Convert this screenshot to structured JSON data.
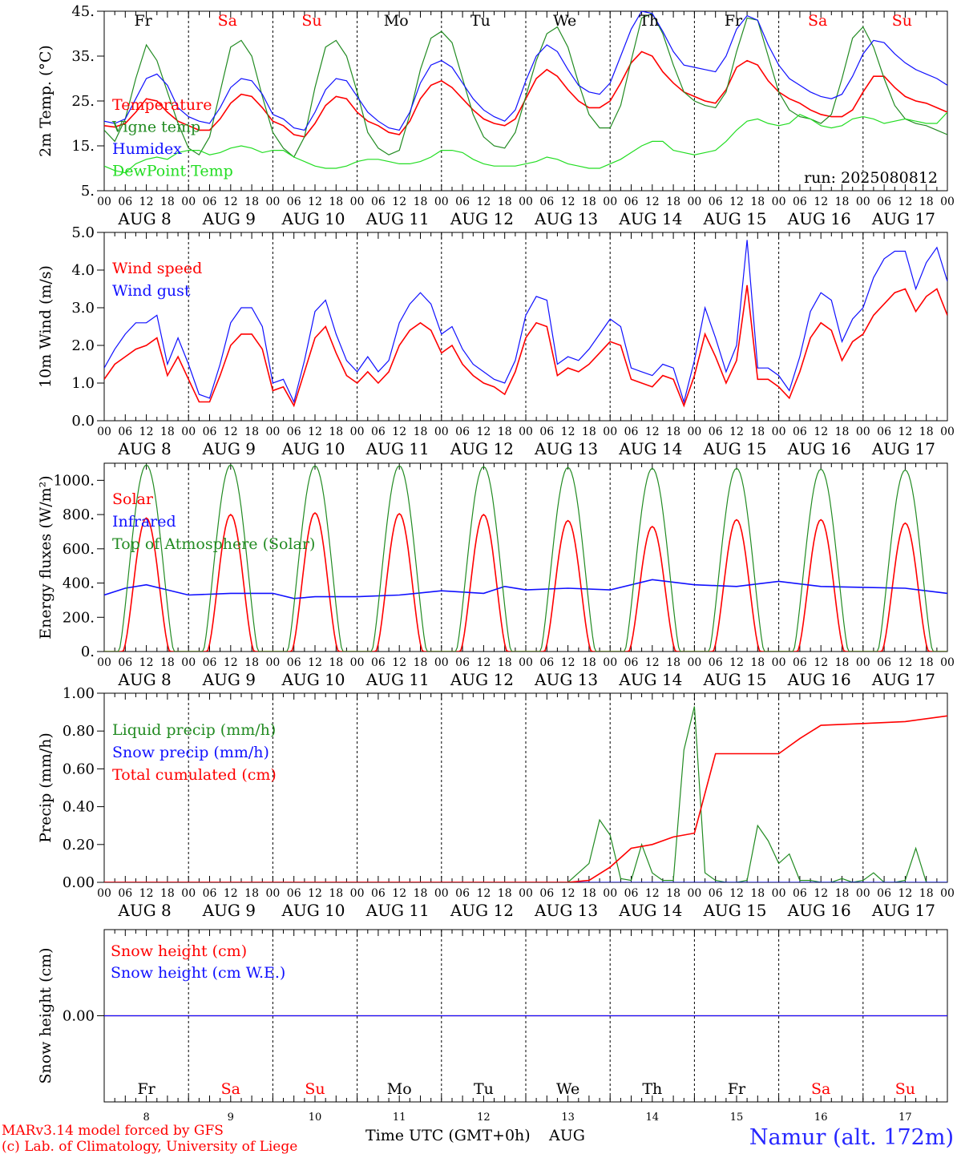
{
  "colors": {
    "red": "#ff0000",
    "green": "#228b22",
    "blue": "#1010ff",
    "lime": "#22dd22",
    "black": "#000000"
  },
  "days": [
    {
      "abbr": "Fr",
      "date": "AUG  8",
      "num": "8",
      "weekend": false
    },
    {
      "abbr": "Sa",
      "date": "AUG  9",
      "num": "9",
      "weekend": true
    },
    {
      "abbr": "Su",
      "date": "AUG 10",
      "num": "10",
      "weekend": true
    },
    {
      "abbr": "Mo",
      "date": "AUG 11",
      "num": "11",
      "weekend": false
    },
    {
      "abbr": "Tu",
      "date": "AUG 12",
      "num": "12",
      "weekend": false
    },
    {
      "abbr": "We",
      "date": "AUG 13",
      "num": "13",
      "weekend": false
    },
    {
      "abbr": "Th",
      "date": "AUG 14",
      "num": "14",
      "weekend": false
    },
    {
      "abbr": "Fr",
      "date": "AUG 15",
      "num": "15",
      "weekend": false
    },
    {
      "abbr": "Sa",
      "date": "AUG 16",
      "num": "16",
      "weekend": true
    },
    {
      "abbr": "Su",
      "date": "AUG 17",
      "num": "17",
      "weekend": true
    }
  ],
  "hour_labels": [
    "00",
    "06",
    "12",
    "18"
  ],
  "footer": {
    "model": "MARv3.14 model forced by GFS",
    "copyright": "(c) Lab. of Climatology, University of Liege",
    "xlabel": "Time UTC (GMT+0h)",
    "month": "AUG",
    "station": "Namur (alt. 172m)"
  },
  "chart_data": [
    {
      "type": "line",
      "ylabel": "2m Temp. (°C)",
      "ylim": [
        5,
        45
      ],
      "yticks": [
        5,
        15,
        25,
        35,
        45
      ],
      "ytick_labels": [
        "5.",
        "15.",
        "25.",
        "35.",
        "45."
      ],
      "annotation": "run: 2025080812",
      "x_unit": "hours since AUG 8 00 UTC",
      "x": [
        0,
        3,
        6,
        9,
        12,
        15,
        18,
        21,
        24,
        27,
        30,
        33,
        36,
        39,
        42,
        45,
        48,
        51,
        54,
        57,
        60,
        63,
        66,
        69,
        72,
        75,
        78,
        81,
        84,
        87,
        90,
        93,
        96,
        99,
        102,
        105,
        108,
        111,
        114,
        117,
        120,
        123,
        126,
        129,
        132,
        135,
        138,
        141,
        144,
        147,
        150,
        153,
        156,
        159,
        162,
        165,
        168,
        171,
        174,
        177,
        180,
        183,
        186,
        189,
        192,
        195,
        198,
        201,
        204,
        207,
        210,
        213,
        216,
        219,
        222,
        225,
        228,
        231,
        234,
        237,
        240
      ],
      "series": [
        {
          "name": "Temperature",
          "color": "#ff0000",
          "values": [
            19.5,
            19.2,
            20,
            22.5,
            25.5,
            25,
            22.5,
            20.5,
            19.5,
            18.5,
            18.5,
            21,
            24.5,
            26.5,
            26,
            23.5,
            20.5,
            19.5,
            17.5,
            17,
            20,
            24,
            26,
            25.5,
            22.5,
            20.5,
            19.5,
            18,
            17.5,
            20.5,
            25.5,
            28.5,
            29.5,
            28,
            25.5,
            23,
            21,
            20,
            19.5,
            21,
            25.5,
            30,
            32,
            30.5,
            27.5,
            25,
            23.5,
            23.5,
            25,
            29,
            33.5,
            36,
            35,
            31.5,
            29,
            27,
            26,
            25,
            24.5,
            27.5,
            32.5,
            34,
            33,
            29.5,
            27,
            25.5,
            24.5,
            23,
            22,
            21.5,
            21.5,
            23,
            27,
            30.5,
            30.5,
            28,
            26,
            25,
            24.5,
            23.5,
            22.5
          ]
        },
        {
          "name": "Vigne temp",
          "color": "#228b22",
          "values": [
            18.5,
            16,
            21,
            30,
            37.5,
            34,
            27,
            20,
            14.5,
            13,
            17,
            27,
            37,
            38.5,
            35,
            26,
            18,
            14.5,
            12.5,
            17,
            28,
            37,
            38.5,
            35,
            27,
            18,
            14.5,
            13,
            14,
            22,
            32,
            39,
            40.5,
            38,
            30,
            22,
            17,
            15,
            14.5,
            18,
            26,
            34,
            40,
            41.5,
            37,
            29,
            22,
            19,
            19,
            24,
            34,
            43.5,
            44.5,
            40,
            33,
            27,
            25,
            24,
            23.5,
            27,
            36,
            43.5,
            43,
            35,
            27,
            23,
            21.5,
            21,
            20,
            22,
            30,
            39,
            41.5,
            37,
            30,
            24,
            21,
            20,
            19.5,
            18.5,
            17.5
          ]
        },
        {
          "name": "Humidex",
          "color": "#1010ff",
          "values": [
            20.5,
            20,
            21,
            25.5,
            30,
            31,
            28.5,
            23.5,
            21.5,
            20.5,
            20,
            23.5,
            28,
            30,
            29.5,
            26.5,
            22,
            21,
            19,
            18.5,
            22.5,
            27.5,
            30,
            29.5,
            26,
            22.5,
            20.5,
            19,
            18.5,
            22.5,
            29,
            33,
            34,
            32.5,
            29,
            25.5,
            23,
            21.5,
            20.5,
            23,
            29.5,
            35,
            37.5,
            36,
            32,
            28.5,
            27,
            26.5,
            29,
            35,
            41,
            45,
            44.5,
            40.5,
            36,
            33,
            32.5,
            32,
            31.5,
            35,
            41,
            44,
            43,
            37.5,
            33,
            30,
            28.5,
            27,
            26,
            25.5,
            26.5,
            30.5,
            35.5,
            38.5,
            38,
            35.5,
            33.5,
            32,
            31,
            30,
            28.5
          ]
        },
        {
          "name": "DewPoint Temp",
          "color": "#22dd22",
          "values": [
            10.5,
            9.5,
            9,
            11,
            12,
            12.5,
            12,
            13.5,
            14,
            14,
            13,
            13.5,
            14.5,
            15,
            14.5,
            13.5,
            14,
            14,
            12.5,
            11.5,
            10.5,
            10,
            10,
            10.5,
            11.5,
            12,
            12,
            11.5,
            11,
            11,
            11.5,
            12.5,
            14,
            14,
            13.5,
            12,
            11,
            10.5,
            10.5,
            10.5,
            11,
            11.5,
            12.5,
            12,
            11,
            10.5,
            10,
            10,
            11,
            12,
            13.5,
            15,
            16,
            16,
            14,
            13.5,
            13,
            13.5,
            14,
            16,
            18.5,
            20.5,
            21,
            20,
            19.5,
            20,
            22,
            21,
            19.5,
            19,
            19.5,
            21,
            21.5,
            21,
            20,
            20.5,
            21,
            20.5,
            20,
            20,
            22.5
          ]
        }
      ]
    },
    {
      "type": "line",
      "ylabel": "10m Wind (m/s)",
      "ylim": [
        0,
        5
      ],
      "yticks": [
        0,
        1,
        2,
        3,
        4,
        5
      ],
      "ytick_labels": [
        "0.0",
        "1.0",
        "2.0",
        "3.0",
        "4.0",
        "5.0"
      ],
      "x_unit": "hours since AUG 8 00 UTC",
      "x": [
        0,
        3,
        6,
        9,
        12,
        15,
        18,
        21,
        24,
        27,
        30,
        33,
        36,
        39,
        42,
        45,
        48,
        51,
        54,
        57,
        60,
        63,
        66,
        69,
        72,
        75,
        78,
        81,
        84,
        87,
        90,
        93,
        96,
        99,
        102,
        105,
        108,
        111,
        114,
        117,
        120,
        123,
        126,
        129,
        132,
        135,
        138,
        141,
        144,
        147,
        150,
        153,
        156,
        159,
        162,
        165,
        168,
        171,
        174,
        177,
        180,
        183,
        186,
        189,
        192,
        195,
        198,
        201,
        204,
        207,
        210,
        213,
        216,
        219,
        222,
        225,
        228,
        231,
        234,
        237,
        240
      ],
      "series": [
        {
          "name": "Wind speed",
          "color": "#ff0000",
          "values": [
            1.1,
            1.5,
            1.7,
            1.9,
            2.0,
            2.2,
            1.2,
            1.7,
            1.1,
            0.5,
            0.5,
            1.2,
            2.0,
            2.3,
            2.3,
            1.9,
            0.8,
            0.9,
            0.4,
            1.3,
            2.2,
            2.5,
            1.8,
            1.2,
            1.0,
            1.3,
            1.0,
            1.3,
            2.0,
            2.4,
            2.6,
            2.4,
            1.8,
            2.0,
            1.5,
            1.2,
            1.0,
            0.9,
            0.7,
            1.3,
            2.2,
            2.6,
            2.5,
            1.2,
            1.4,
            1.3,
            1.5,
            1.8,
            2.1,
            2.0,
            1.1,
            1.0,
            0.9,
            1.2,
            1.1,
            0.4,
            1.2,
            2.3,
            1.7,
            1.0,
            1.6,
            3.6,
            1.1,
            1.1,
            0.9,
            0.6,
            1.3,
            2.2,
            2.6,
            2.4,
            1.6,
            2.1,
            2.3,
            2.8,
            3.1,
            3.4,
            3.5,
            2.9,
            3.3,
            3.5,
            2.8
          ]
        },
        {
          "name": "Wind gust",
          "color": "#1010ff",
          "values": [
            1.4,
            1.9,
            2.3,
            2.6,
            2.6,
            2.8,
            1.5,
            2.2,
            1.5,
            0.7,
            0.6,
            1.5,
            2.6,
            3.0,
            3.0,
            2.5,
            1.0,
            1.1,
            0.5,
            1.6,
            2.9,
            3.2,
            2.3,
            1.6,
            1.3,
            1.7,
            1.3,
            1.6,
            2.6,
            3.1,
            3.4,
            3.1,
            2.3,
            2.5,
            1.9,
            1.5,
            1.3,
            1.1,
            1.0,
            1.6,
            2.8,
            3.3,
            3.2,
            1.5,
            1.7,
            1.6,
            1.9,
            2.3,
            2.7,
            2.5,
            1.4,
            1.3,
            1.2,
            1.5,
            1.4,
            0.5,
            1.6,
            3.0,
            2.2,
            1.3,
            2.0,
            4.8,
            1.4,
            1.4,
            1.2,
            0.8,
            1.7,
            2.9,
            3.4,
            3.2,
            2.1,
            2.7,
            3.0,
            3.8,
            4.3,
            4.5,
            4.5,
            3.5,
            4.2,
            4.6,
            3.7
          ]
        }
      ]
    },
    {
      "type": "line",
      "ylabel": "Energy fluxes (W/m²)",
      "ylim": [
        0,
        1100
      ],
      "yticks": [
        0,
        200,
        400,
        600,
        800,
        1000
      ],
      "ytick_labels": [
        "0.",
        "200.",
        "400.",
        "600.",
        "800.",
        "1000."
      ],
      "x_unit": "hours since AUG 8 00 UTC",
      "series": [
        {
          "name": "Solar",
          "color": "#ff0000",
          "day_peaks": [
            780,
            800,
            810,
            805,
            800,
            765,
            730,
            770,
            770,
            750
          ]
        },
        {
          "name": "Infrared",
          "color": "#1010ff",
          "x": [
            0,
            6,
            12,
            18,
            24,
            36,
            48,
            54,
            60,
            72,
            84,
            96,
            108,
            114,
            120,
            132,
            144,
            156,
            168,
            180,
            192,
            204,
            216,
            228,
            240
          ],
          "values": [
            330,
            370,
            390,
            360,
            330,
            340,
            340,
            310,
            320,
            320,
            330,
            355,
            340,
            380,
            360,
            370,
            360,
            420,
            390,
            380,
            410,
            380,
            375,
            370,
            340
          ]
        },
        {
          "name": "Top of Atmosphere (Solar)",
          "color": "#228b22",
          "day_peaks": [
            1090,
            1090,
            1085,
            1085,
            1080,
            1075,
            1070,
            1070,
            1065,
            1060
          ]
        }
      ]
    },
    {
      "type": "line",
      "ylabel": "Precip (mm/h)",
      "ylim": [
        0,
        1
      ],
      "yticks": [
        0,
        0.2,
        0.4,
        0.6,
        0.8,
        1.0
      ],
      "ytick_labels": [
        "0.00",
        "0.20",
        "0.40",
        "0.60",
        "0.80",
        "1.00"
      ],
      "x_unit": "hours since AUG 8 00 UTC",
      "series": [
        {
          "name": "Liquid precip (mm/h)",
          "color": "#228b22",
          "x": [
            0,
            132,
            135,
            138,
            141,
            144,
            147,
            150,
            153,
            156,
            159,
            162,
            165,
            168,
            171,
            174,
            177,
            180,
            183,
            186,
            189,
            192,
            195,
            198,
            201,
            204,
            207,
            210,
            213,
            216,
            219,
            222,
            225,
            228,
            231,
            234,
            237,
            240
          ],
          "values": [
            0,
            0,
            0.05,
            0.1,
            0.33,
            0.25,
            0.02,
            0.01,
            0.2,
            0.05,
            0.01,
            0.01,
            0.7,
            0.93,
            0.05,
            0.01,
            0,
            0,
            0.01,
            0.3,
            0.22,
            0.1,
            0.15,
            0.01,
            0.01,
            0,
            0,
            0.02,
            0,
            0.01,
            0.05,
            0,
            0,
            0.01,
            0.18,
            0,
            0,
            0
          ]
        },
        {
          "name": "Snow precip (mm/h)",
          "color": "#1010ff",
          "x": [
            0,
            240
          ],
          "values": [
            0,
            0
          ]
        },
        {
          "name": "Total cumulated (cm)",
          "color": "#ff0000",
          "x": [
            0,
            132,
            138,
            144,
            150,
            156,
            162,
            168,
            174,
            180,
            186,
            192,
            198,
            204,
            216,
            228,
            240
          ],
          "values": [
            0,
            0,
            0.01,
            0.08,
            0.18,
            0.2,
            0.24,
            0.26,
            0.68,
            0.68,
            0.68,
            0.68,
            0.76,
            0.83,
            0.84,
            0.85,
            0.88
          ]
        }
      ]
    },
    {
      "type": "line",
      "ylabel": "Snow height (cm)",
      "ylim": [
        -1,
        1
      ],
      "yticks": [
        0
      ],
      "ytick_labels": [
        "0.00"
      ],
      "x_unit": "hours since AUG 8 00 UTC",
      "series": [
        {
          "name": "Snow height (cm)",
          "color": "#ff0000",
          "x": [
            0,
            240
          ],
          "values": [
            0,
            0
          ]
        },
        {
          "name": "Snow height (cm W.E.)",
          "color": "#1010ff",
          "x": [
            0,
            240
          ],
          "values": [
            0,
            0
          ]
        }
      ]
    }
  ]
}
